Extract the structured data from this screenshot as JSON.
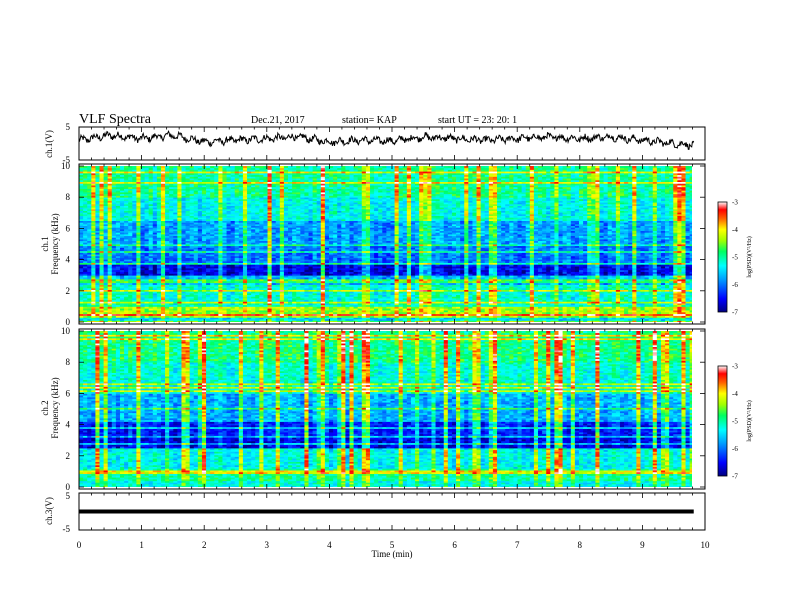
{
  "header": {
    "title": "VLF Spectra",
    "date": "Dec.21, 2017",
    "station": "station= KAP",
    "start_ut": "start  UT =   23: 20: 1"
  },
  "chart_data": [
    {
      "name": "ch1-voltage",
      "type": "line",
      "ylabel": "ch.1(V)",
      "ylim": [
        -5,
        5
      ],
      "yticks": [
        "5",
        "-5"
      ],
      "xlim": [
        0,
        10
      ],
      "x_end": 9.82,
      "description_level": 0.8,
      "series": [
        {
          "x": [
            0,
            0.5,
            1,
            1.5,
            2,
            2.5,
            3,
            3.5,
            4,
            4.5,
            5,
            5.5,
            6,
            6.5,
            7,
            7.5,
            8,
            8.5,
            9,
            9.5,
            9.82
          ],
          "values": [
            1.0,
            2.5,
            1.5,
            2.5,
            0.5,
            1.0,
            1.5,
            2.0,
            0.5,
            1.0,
            0.8,
            2.0,
            1.5,
            1.0,
            1.5,
            2.0,
            1.5,
            2.0,
            1.0,
            0.0,
            -0.5
          ]
        }
      ]
    },
    {
      "name": "ch1-spectrogram",
      "type": "heatmap",
      "ylabel_line1": "ch.1",
      "ylabel_line2": "Frequency (kHz)",
      "ylim": [
        0,
        10
      ],
      "yticks": [
        "0",
        "2",
        "4",
        "6",
        "8",
        "10"
      ],
      "xlim": [
        0,
        9.82
      ],
      "color_scale": {
        "min": -7,
        "max": -3,
        "ticks": [
          "-3",
          "-4",
          "-5",
          "-6",
          "-7"
        ],
        "label": "log(PSD)(V²/Hz)",
        "colors": [
          "#000080",
          "#0000ff",
          "#00a0ff",
          "#00ffff",
          "#00ff80",
          "#80ff00",
          "#ffff00",
          "#ff8000",
          "#ff0000",
          "#ffffff"
        ]
      },
      "bands_khz": [
        {
          "from": 0.0,
          "to": 0.3,
          "level": -5.5
        },
        {
          "from": 0.3,
          "to": 1.0,
          "level": -4.4
        },
        {
          "from": 1.0,
          "to": 2.4,
          "level": -5.2
        },
        {
          "from": 2.4,
          "to": 3.0,
          "level": -5.7
        },
        {
          "from": 3.0,
          "to": 3.7,
          "level": -6.6
        },
        {
          "from": 3.7,
          "to": 5.0,
          "level": -6.0
        },
        {
          "from": 5.0,
          "to": 6.5,
          "level": -5.8
        },
        {
          "from": 6.5,
          "to": 8.0,
          "level": -5.3
        },
        {
          "from": 8.0,
          "to": 10.0,
          "level": -5.0
        }
      ]
    },
    {
      "name": "ch2-spectrogram",
      "type": "heatmap",
      "ylabel_line1": "ch.2",
      "ylabel_line2": "Frequency (kHz)",
      "ylim": [
        0,
        10
      ],
      "yticks": [
        "0",
        "2",
        "4",
        "6",
        "8",
        "10"
      ],
      "xlim": [
        0,
        9.82
      ],
      "color_scale": {
        "min": -7,
        "max": -3,
        "ticks": [
          "-3",
          "-4",
          "-5",
          "-6",
          "-7"
        ],
        "label": "log(PSD)(V²/Hz)",
        "colors": [
          "#000080",
          "#0000ff",
          "#00a0ff",
          "#00ffff",
          "#00ff80",
          "#80ff00",
          "#ffff00",
          "#ff8000",
          "#ff0000",
          "#ffffff"
        ]
      },
      "bands_khz": [
        {
          "from": 0.0,
          "to": 0.4,
          "level": -5.3
        },
        {
          "from": 0.4,
          "to": 1.2,
          "level": -5.0
        },
        {
          "from": 1.2,
          "to": 2.5,
          "level": -5.3
        },
        {
          "from": 2.5,
          "to": 3.3,
          "level": -6.6
        },
        {
          "from": 3.3,
          "to": 4.2,
          "level": -6.4
        },
        {
          "from": 4.2,
          "to": 6.0,
          "level": -5.7
        },
        {
          "from": 6.0,
          "to": 8.0,
          "level": -5.2
        },
        {
          "from": 8.0,
          "to": 10.0,
          "level": -4.9
        }
      ]
    },
    {
      "name": "ch3-voltage",
      "type": "line",
      "ylabel": "ch.3(V)",
      "ylim": [
        -5,
        5
      ],
      "yticks": [
        "5",
        "-5"
      ],
      "xlim": [
        0,
        10
      ],
      "x_end": 9.82,
      "series": [
        {
          "x": [
            0,
            9.82
          ],
          "values": [
            0,
            0
          ]
        }
      ]
    }
  ],
  "x_axis": {
    "label": "Time (min)",
    "ticks": [
      "0",
      "1",
      "2",
      "3",
      "4",
      "5",
      "6",
      "7",
      "8",
      "9",
      "10"
    ],
    "range": [
      0,
      10
    ]
  },
  "colors": {
    "line": "#000000",
    "background": "#ffffff"
  }
}
